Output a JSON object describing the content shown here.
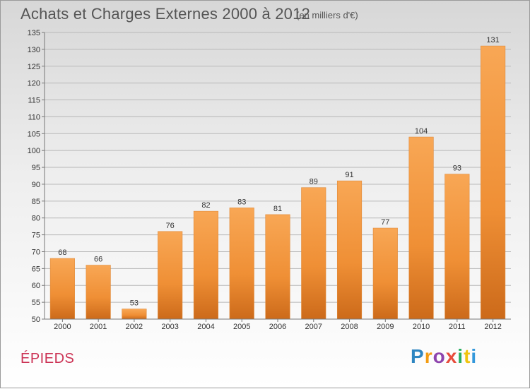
{
  "header": {
    "title": "Achats et Charges Externes 2000 à 2012",
    "subtitle": "(en milliers d'€)"
  },
  "footer": {
    "commune": "ÉPIEDS",
    "brand": "Proxiti",
    "brand_letters": [
      "P",
      "r",
      "o",
      "x",
      "i",
      "t",
      "i"
    ],
    "brand_colors": [
      "#2e86c1",
      "#f39c12",
      "#8e44ad",
      "#e74c3c",
      "#27ae60",
      "#f1c40f",
      "#3498db"
    ]
  },
  "chart_data": {
    "type": "bar",
    "title": "Achats et Charges Externes 2000 à 2012",
    "subtitle": "(en milliers d'€)",
    "categories": [
      "2000",
      "2001",
      "2002",
      "2003",
      "2004",
      "2005",
      "2006",
      "2007",
      "2008",
      "2009",
      "2010",
      "2011",
      "2012"
    ],
    "values": [
      68,
      66,
      53,
      76,
      82,
      83,
      81,
      89,
      91,
      77,
      104,
      93,
      131
    ],
    "ylim": [
      50,
      135
    ],
    "yticks": [
      50,
      55,
      60,
      65,
      70,
      75,
      80,
      85,
      90,
      95,
      100,
      105,
      110,
      115,
      120,
      125,
      130,
      135
    ],
    "grid": true,
    "bar_color": "#f5a04a",
    "bar_color_dark": "#cc6a1a"
  }
}
